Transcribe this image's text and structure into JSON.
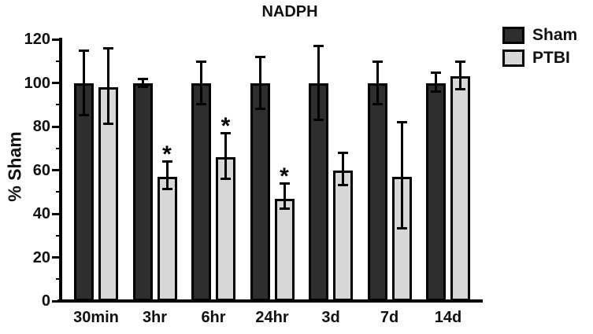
{
  "chart_data": {
    "type": "bar",
    "title": "NADPH",
    "xlabel": "",
    "ylabel": "% Sham",
    "ylim": [
      0,
      120
    ],
    "yticks": [
      0,
      20,
      40,
      60,
      80,
      100,
      120
    ],
    "minor_tick_step": 10,
    "grid": false,
    "legend_position": "top-right",
    "background_color": "#ffffff",
    "axis_color": "#000000",
    "categories": [
      "30min",
      "3hr",
      "6hr",
      "24hr",
      "3d",
      "7d",
      "14d"
    ],
    "series": [
      {
        "name": "Sham",
        "color": "#2e2e2e",
        "values": [
          100,
          100,
          100,
          100,
          100,
          100,
          100
        ],
        "err_lo": [
          85,
          98,
          90,
          88,
          83,
          90,
          96
        ],
        "err_hi": [
          115,
          102,
          110,
          112,
          117,
          110,
          105
        ],
        "sig_markers": [
          "",
          "",
          "",
          "",
          "",
          "",
          ""
        ]
      },
      {
        "name": "PTBI",
        "color": "#d7d7d7",
        "values": [
          98,
          57,
          66,
          47,
          60,
          57,
          103
        ],
        "err_lo": [
          81,
          51,
          56,
          42,
          53,
          33,
          97
        ],
        "err_hi": [
          116,
          64,
          77,
          54,
          68,
          82,
          110
        ],
        "sig_markers": [
          "",
          "*",
          "*",
          "*",
          "",
          "",
          ""
        ]
      }
    ],
    "sig_symbol": "*"
  }
}
